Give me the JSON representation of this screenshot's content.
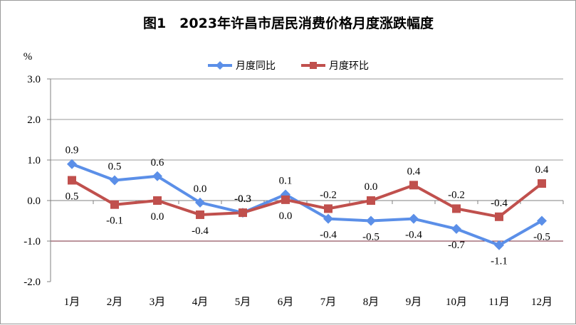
{
  "chart_data": {
    "type": "line",
    "title": "图1　2023年许昌市居民消费价格月度涨跌幅度",
    "ylabel": "%",
    "categories": [
      "1月",
      "2月",
      "3月",
      "4月",
      "5月",
      "6月",
      "7月",
      "8月",
      "9月",
      "10月",
      "11月",
      "12月"
    ],
    "ylim": [
      -2.0,
      3.0
    ],
    "yticks": [
      "3.0",
      "2.0",
      "1.0",
      "0.0",
      "-1.0",
      "-2.0"
    ],
    "legend_position": "top",
    "series": [
      {
        "name": "月度同比",
        "color": "#5B8FE8",
        "marker": "diamond",
        "values": [
          0.9,
          0.5,
          0.6,
          -0.05,
          -0.3,
          0.15,
          -0.45,
          -0.5,
          -0.45,
          -0.7,
          -1.1,
          -0.5
        ],
        "labels": [
          "0.9",
          "0.5",
          "0.6",
          "0.0",
          "-0.3",
          "0.1",
          "-0.4",
          "-0.5",
          "-0.4",
          "-0.7",
          "-1.1",
          "-0.5"
        ]
      },
      {
        "name": "月度环比",
        "color": "#C0504D",
        "marker": "square",
        "values": [
          0.5,
          -0.1,
          0.0,
          -0.35,
          -0.3,
          0.02,
          -0.2,
          0.0,
          0.38,
          -0.2,
          -0.4,
          0.42
        ],
        "labels": [
          "0.5",
          "-0.1",
          "0.0",
          "-0.4",
          "-0.3",
          "0.0",
          "-0.2",
          "0.0",
          "0.4",
          "-0.2",
          "-0.4",
          "0.4"
        ]
      }
    ]
  }
}
